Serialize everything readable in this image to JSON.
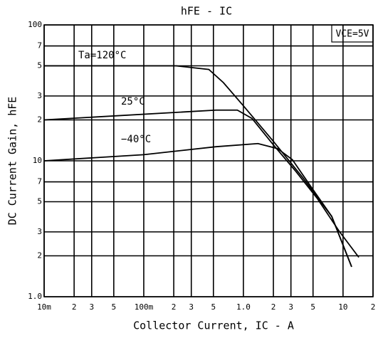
{
  "chart_data": {
    "type": "line",
    "title": "hFE - IC",
    "x_label": "Collector Current, IC - A",
    "y_label": "DC Current Gain, hFE",
    "annotation": "VCE=5V",
    "log_x": true,
    "log_y": true,
    "grid": true,
    "xlim": [
      0.01,
      20
    ],
    "ylim": [
      1,
      100
    ],
    "xticks": [
      {
        "value": 0.01,
        "label": "10m"
      },
      {
        "value": 0.02,
        "label": "2"
      },
      {
        "value": 0.03,
        "label": "3"
      },
      {
        "value": 0.05,
        "label": "5"
      },
      {
        "value": 0.1,
        "label": "100m"
      },
      {
        "value": 0.2,
        "label": "2"
      },
      {
        "value": 0.3,
        "label": "3"
      },
      {
        "value": 0.5,
        "label": "5"
      },
      {
        "value": 1,
        "label": "1.0"
      },
      2,
      3,
      5,
      10,
      {
        "value": 20,
        "label": "2"
      }
    ],
    "yticks": [
      {
        "value": 1,
        "label": "1.0"
      },
      2,
      3,
      5,
      7,
      10,
      {
        "value": 20,
        "label": "2"
      },
      {
        "value": 30,
        "label": "3"
      },
      {
        "value": 50,
        "label": "5"
      },
      {
        "value": 70,
        "label": "7"
      },
      100
    ],
    "series": [
      {
        "name": "Ta=120°C",
        "color": "#000000",
        "x": [
          0.01,
          0.21,
          0.45,
          0.63,
          1,
          2,
          3.9,
          7.7,
          12.2
        ],
        "values": [
          50,
          50,
          47,
          37.6,
          25.4,
          13.9,
          7.6,
          3.9,
          1.66
        ]
      },
      {
        "name": "25°C",
        "color": "#000000",
        "x": [
          0.01,
          0.53,
          0.87,
          1.22,
          2,
          3.3,
          5.5,
          9.1,
          14.4
        ],
        "values": [
          20,
          23.6,
          23.6,
          20.5,
          13.1,
          8.5,
          5.3,
          3.05,
          1.95
        ]
      },
      {
        "name": "−40°C",
        "color": "#000000",
        "x": [
          0.01,
          0.1,
          0.53,
          1.4,
          2.2,
          3.1,
          4.6,
          7.7,
          12.2
        ],
        "values": [
          10,
          11.1,
          12.7,
          13.4,
          12.3,
          10.2,
          6.7,
          3.9,
          1.66
        ]
      }
    ]
  }
}
